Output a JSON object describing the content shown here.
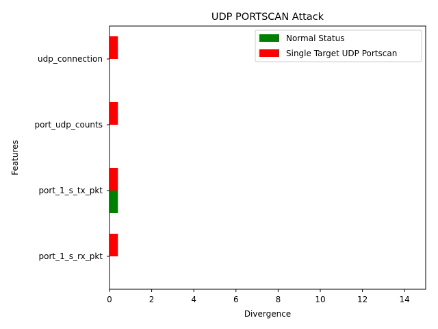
{
  "chart_data": {
    "type": "bar",
    "orientation": "horizontal",
    "title": "UDP PORTSCAN Attack",
    "xlabel": "Divergence",
    "ylabel": "Features",
    "categories": [
      "udp_connection",
      "port_udp_counts",
      "port_1_s_tx_pkt",
      "port_1_s_rx_pkt"
    ],
    "series": [
      {
        "name": "Normal Status",
        "color": "#008000",
        "values": [
          0,
          0,
          0.4,
          0
        ]
      },
      {
        "name": "Single Target UDP Portscan",
        "color": "#ff0000",
        "values": [
          0.4,
          0.4,
          0.4,
          0.4
        ]
      }
    ],
    "xlim": [
      0,
      15
    ],
    "xticks": [
      0,
      2,
      4,
      6,
      8,
      10,
      12,
      14
    ],
    "grid": false,
    "legend_position": "top-right"
  }
}
